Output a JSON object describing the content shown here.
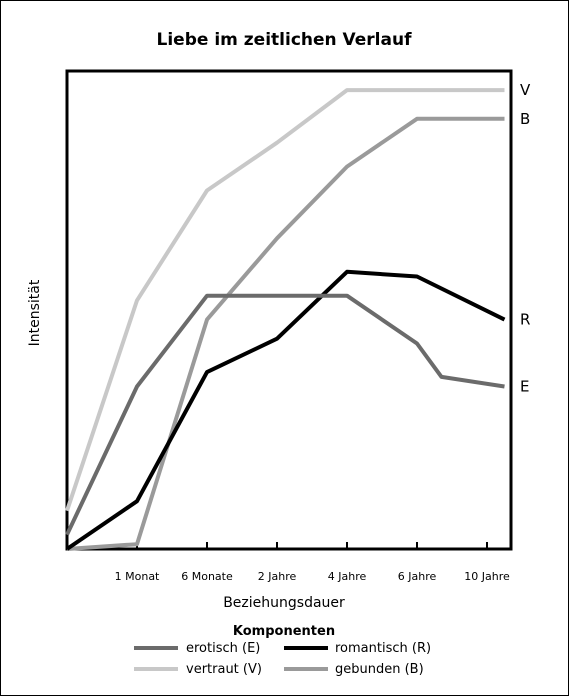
{
  "chart_data": {
    "type": "line",
    "title": "Liebe im zeitlichen Verlauf",
    "xlabel": "Beziehungsdauer",
    "ylabel": "Intensität",
    "x_ticks": [
      "1 Monat",
      "6 Monate",
      "2 Jahre",
      "4 Jahre",
      "6 Jahre",
      "10 Jahre"
    ],
    "x_tick_positions": [
      1,
      2,
      3,
      4,
      5,
      6
    ],
    "xlim": [
      0,
      6.25
    ],
    "ylim": [
      0,
      100
    ],
    "y_ticks_shown": false,
    "grid": false,
    "legend_title": "Komponenten",
    "legend_position": "bottom",
    "series": [
      {
        "name": "vertraut (V)",
        "end_label": "V",
        "color": "#c8c8c8",
        "x": [
          0,
          1,
          2,
          3,
          4,
          5,
          6.25
        ],
        "y": [
          8,
          52,
          75,
          85,
          96,
          96,
          96
        ]
      },
      {
        "name": "gebunden (B)",
        "end_label": "B",
        "color": "#9a9a9a",
        "x": [
          0,
          1,
          2,
          3,
          4,
          5,
          6.25
        ],
        "y": [
          0,
          1,
          48,
          65,
          80,
          90,
          90
        ]
      },
      {
        "name": "romantisch (R)",
        "end_label": "R",
        "color": "#000000",
        "x": [
          0,
          1,
          2,
          3,
          4,
          5,
          6.25
        ],
        "y": [
          0,
          10,
          37,
          44,
          58,
          57,
          48
        ]
      },
      {
        "name": "erotisch (E)",
        "end_label": "E",
        "color": "#6b6b6b",
        "x": [
          0,
          1,
          2,
          3,
          4,
          5,
          5.35,
          6.25
        ],
        "y": [
          3,
          34,
          53,
          53,
          53,
          43,
          36,
          34
        ]
      }
    ]
  }
}
